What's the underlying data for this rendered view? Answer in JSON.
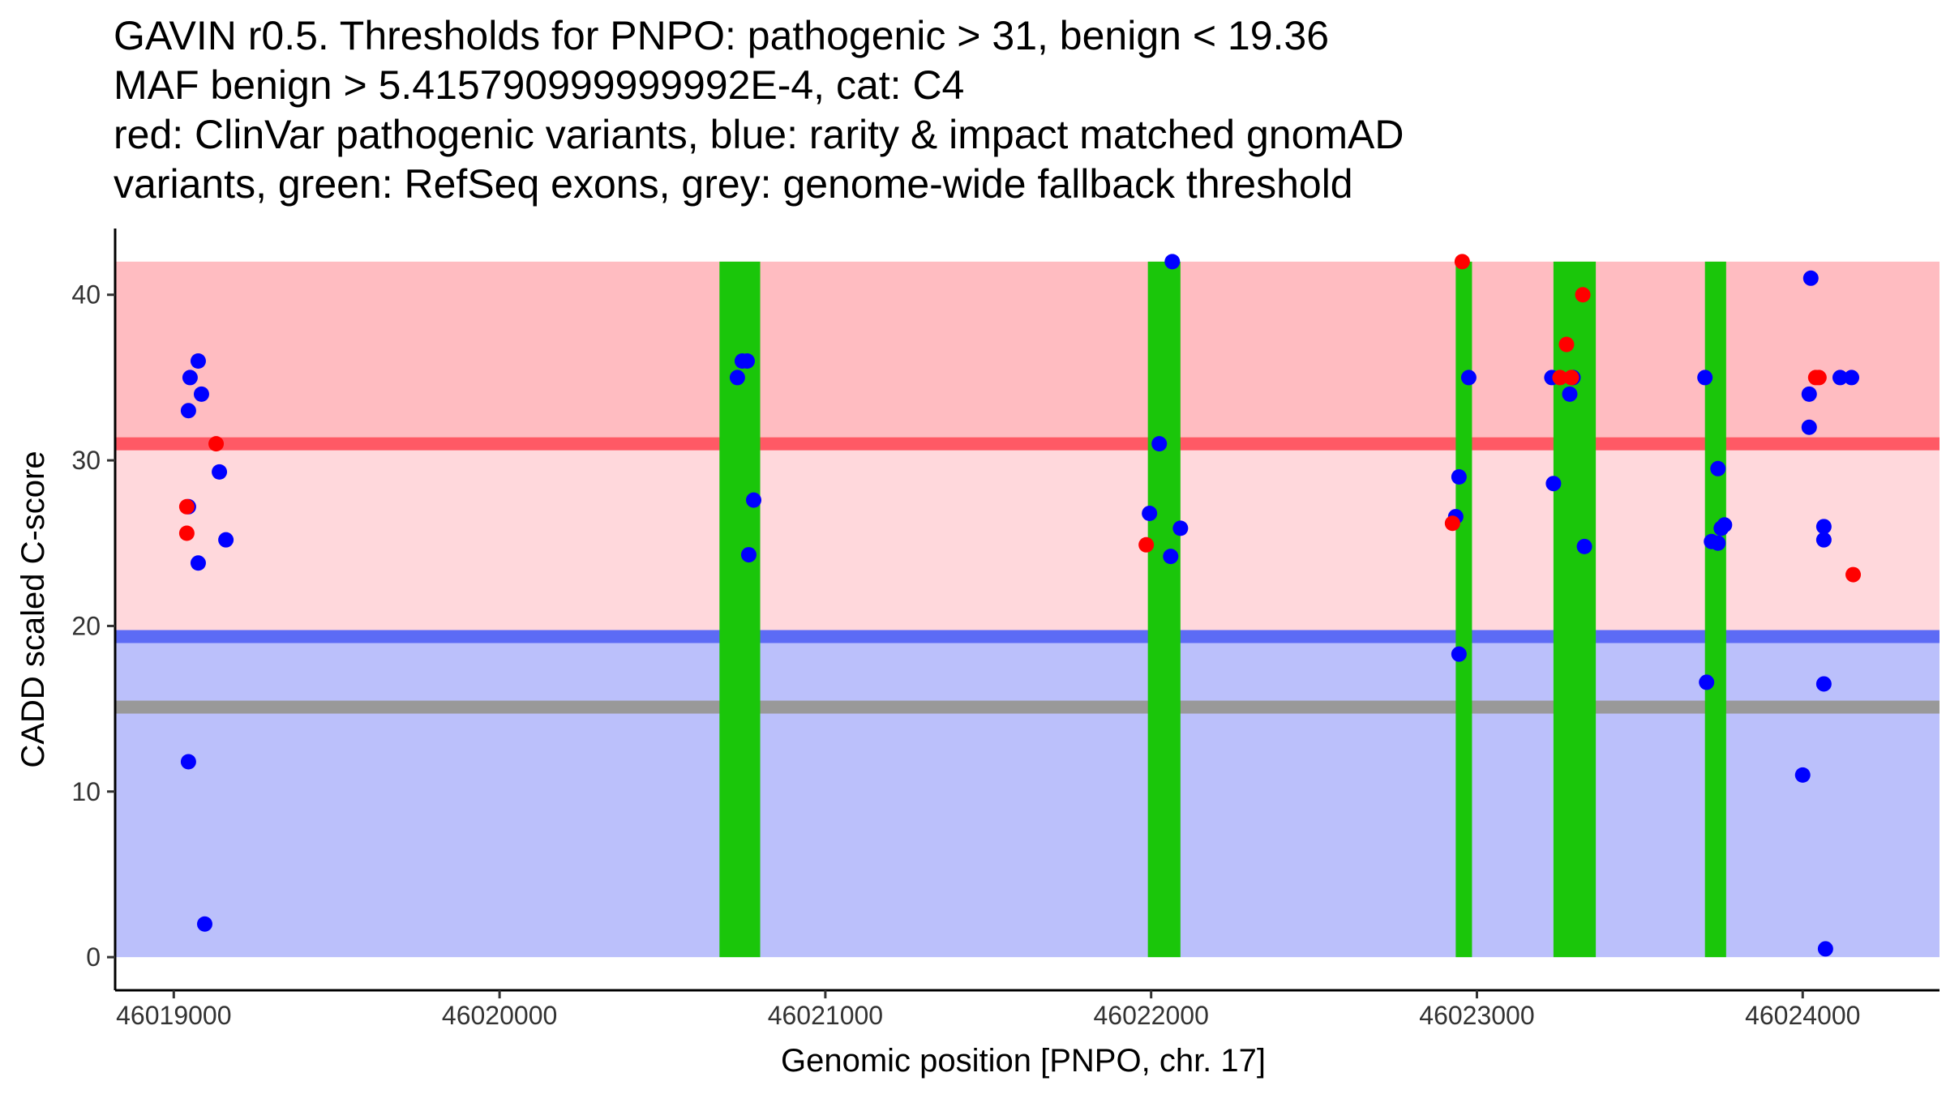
{
  "chart_data": {
    "type": "scatter",
    "title_lines": [
      "GAVIN r0.5. Thresholds for PNPO: pathogenic > 31, benign < 19.36",
      "MAF benign > 5.415790999999992E-4, cat: C4",
      "red: ClinVar pathogenic variants, blue: rarity & impact matched gnomAD",
      "variants, green: RefSeq exons, grey: genome-wide fallback threshold"
    ],
    "xlabel": "Genomic position [PNPO, chr. 17]",
    "ylabel": "CADD scaled C-score",
    "xlim": [
      46018820,
      46024420
    ],
    "ylim": [
      -2,
      44
    ],
    "x_ticks": [
      {
        "value": 46019000,
        "label": "46019000"
      },
      {
        "value": 46020000,
        "label": "46020000"
      },
      {
        "value": 46021000,
        "label": "46021000"
      },
      {
        "value": 46022000,
        "label": "46022000"
      },
      {
        "value": 46023000,
        "label": "46023000"
      },
      {
        "value": 46024000,
        "label": "46024000"
      }
    ],
    "y_ticks": [
      {
        "value": 0,
        "label": "0"
      },
      {
        "value": 10,
        "label": "10"
      },
      {
        "value": 20,
        "label": "20"
      },
      {
        "value": 30,
        "label": "30"
      },
      {
        "value": 40,
        "label": "40"
      }
    ],
    "grid": false,
    "region_x": [
      46018820,
      46024420
    ],
    "bands": [
      {
        "name": "pathogenic-zone",
        "y0": 31,
        "y1": 42,
        "color": "#ffbcc1"
      },
      {
        "name": "intermediate-zone",
        "y0": 19.36,
        "y1": 31,
        "color": "#ffd8dc"
      },
      {
        "name": "benign-zone",
        "y0": 0,
        "y1": 19.36,
        "color": "#bbc0fb"
      }
    ],
    "threshold_lines": [
      {
        "name": "pathogenic-threshold",
        "y": 31,
        "color": "#ff5965"
      },
      {
        "name": "benign-threshold",
        "y": 19.36,
        "color": "#5c6bf5"
      },
      {
        "name": "fallback-threshold",
        "y": 15.1,
        "color": "#999999"
      }
    ],
    "exons": [
      {
        "start": 46020675,
        "end": 46020800
      },
      {
        "start": 46021990,
        "end": 46022090
      },
      {
        "start": 46022935,
        "end": 46022985
      },
      {
        "start": 46023235,
        "end": 46023365
      },
      {
        "start": 46023700,
        "end": 46023765
      }
    ],
    "exon_y_range": [
      0,
      42
    ],
    "exon_color": "#1ac60a",
    "series": [
      {
        "name": "ClinVar pathogenic variants",
        "color": "#ff0000",
        "points": [
          {
            "x": 46019040,
            "y": 27.2
          },
          {
            "x": 46019040,
            "y": 25.6
          },
          {
            "x": 46019130,
            "y": 31
          },
          {
            "x": 46021985,
            "y": 24.9
          },
          {
            "x": 46022925,
            "y": 26.2
          },
          {
            "x": 46022955,
            "y": 42
          },
          {
            "x": 46023255,
            "y": 35
          },
          {
            "x": 46023275,
            "y": 37
          },
          {
            "x": 46023290,
            "y": 35
          },
          {
            "x": 46023325,
            "y": 40
          },
          {
            "x": 46024040,
            "y": 35
          },
          {
            "x": 46024050,
            "y": 35
          },
          {
            "x": 46024155,
            "y": 23.1
          }
        ]
      },
      {
        "name": "rarity & impact matched gnomAD variants",
        "color": "#0000ff",
        "points": [
          {
            "x": 46019050,
            "y": 35
          },
          {
            "x": 46019075,
            "y": 36
          },
          {
            "x": 46019045,
            "y": 33
          },
          {
            "x": 46019085,
            "y": 34
          },
          {
            "x": 46019045,
            "y": 27.2
          },
          {
            "x": 46019140,
            "y": 29.3
          },
          {
            "x": 46019160,
            "y": 25.2
          },
          {
            "x": 46019075,
            "y": 23.8
          },
          {
            "x": 46019045,
            "y": 11.8
          },
          {
            "x": 46019095,
            "y": 2
          },
          {
            "x": 46020745,
            "y": 36
          },
          {
            "x": 46020760,
            "y": 36
          },
          {
            "x": 46020730,
            "y": 35
          },
          {
            "x": 46020780,
            "y": 27.6
          },
          {
            "x": 46020765,
            "y": 24.3
          },
          {
            "x": 46022065,
            "y": 42
          },
          {
            "x": 46022025,
            "y": 31
          },
          {
            "x": 46021995,
            "y": 26.8
          },
          {
            "x": 46022090,
            "y": 25.9
          },
          {
            "x": 46022060,
            "y": 24.2
          },
          {
            "x": 46022975,
            "y": 35
          },
          {
            "x": 46022945,
            "y": 29
          },
          {
            "x": 46022935,
            "y": 26.6
          },
          {
            "x": 46022945,
            "y": 18.3
          },
          {
            "x": 46023230,
            "y": 35
          },
          {
            "x": 46023295,
            "y": 35
          },
          {
            "x": 46023285,
            "y": 34
          },
          {
            "x": 46023235,
            "y": 28.6
          },
          {
            "x": 46023330,
            "y": 24.8
          },
          {
            "x": 46023700,
            "y": 35
          },
          {
            "x": 46023740,
            "y": 29.5
          },
          {
            "x": 46023720,
            "y": 25.1
          },
          {
            "x": 46023740,
            "y": 25
          },
          {
            "x": 46023750,
            "y": 25.9
          },
          {
            "x": 46023760,
            "y": 26.1
          },
          {
            "x": 46023705,
            "y": 16.6
          },
          {
            "x": 46024025,
            "y": 41
          },
          {
            "x": 46024020,
            "y": 34
          },
          {
            "x": 46024020,
            "y": 32
          },
          {
            "x": 46024065,
            "y": 26
          },
          {
            "x": 46024065,
            "y": 25.2
          },
          {
            "x": 46024065,
            "y": 16.5
          },
          {
            "x": 46024000,
            "y": 11
          },
          {
            "x": 46024070,
            "y": 0.5
          },
          {
            "x": 46024115,
            "y": 35
          },
          {
            "x": 46024150,
            "y": 35
          }
        ]
      }
    ]
  }
}
